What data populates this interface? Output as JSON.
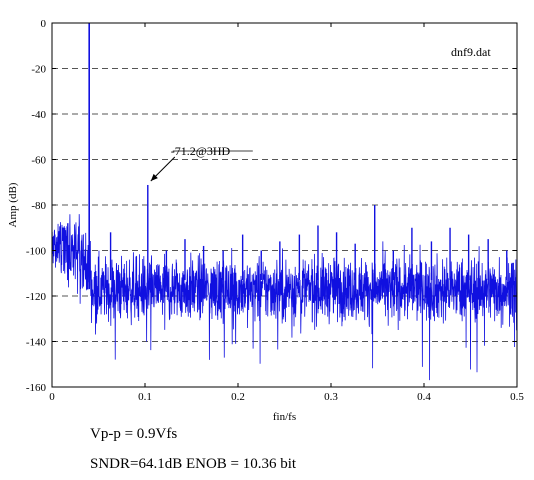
{
  "chart_data": {
    "type": "line",
    "title": "",
    "xlabel": "fin/fs",
    "ylabel": "Amp (dB)",
    "xlim": [
      0,
      0.5
    ],
    "ylim": [
      -160,
      0
    ],
    "x_ticks": [
      0,
      0.1,
      0.2,
      0.3,
      0.4,
      0.5
    ],
    "x_tick_labels": [
      "0",
      "0.1",
      "0.2",
      "0.3",
      "0.4",
      "0.5"
    ],
    "y_ticks": [
      0,
      -20,
      -40,
      -60,
      -80,
      -100,
      -120,
      -140,
      -160
    ],
    "y_tick_labels": [
      "0",
      "-20",
      "-40",
      "-60",
      "-80",
      "-100",
      "-120",
      "-140",
      "-160"
    ],
    "grid": "horizontal dashed",
    "line_color": "#1010e0",
    "legend_text": "dnf9.dat",
    "series": [
      {
        "name": "",
        "fundamental": {
          "x": 0.04,
          "y": 0
        },
        "noise_floor_mean": -117,
        "spurs": [
          {
            "x": 0.103,
            "y": -71.2
          },
          {
            "x": 0.017,
            "y": -88
          },
          {
            "x": 0.063,
            "y": -92
          },
          {
            "x": 0.123,
            "y": -100
          },
          {
            "x": 0.143,
            "y": -95
          },
          {
            "x": 0.163,
            "y": -98
          },
          {
            "x": 0.184,
            "y": -100
          },
          {
            "x": 0.205,
            "y": -93
          },
          {
            "x": 0.225,
            "y": -100
          },
          {
            "x": 0.245,
            "y": -96
          },
          {
            "x": 0.266,
            "y": -93
          },
          {
            "x": 0.286,
            "y": -89
          },
          {
            "x": 0.306,
            "y": -92
          },
          {
            "x": 0.326,
            "y": -97
          },
          {
            "x": 0.347,
            "y": -80
          },
          {
            "x": 0.367,
            "y": -100
          },
          {
            "x": 0.387,
            "y": -90
          },
          {
            "x": 0.408,
            "y": -96
          },
          {
            "x": 0.428,
            "y": -90
          },
          {
            "x": 0.448,
            "y": -93
          },
          {
            "x": 0.469,
            "y": -95
          },
          {
            "x": 0.489,
            "y": -100
          }
        ]
      }
    ],
    "annotations": [
      {
        "text": "-71.2@3HD",
        "x": 0.103,
        "y": -71.2
      }
    ]
  },
  "captions": {
    "vpp": "Vp-p = 0.9Vfs",
    "sndr": "SNDR=64.1dB  ENOB = 10.36 bit"
  }
}
